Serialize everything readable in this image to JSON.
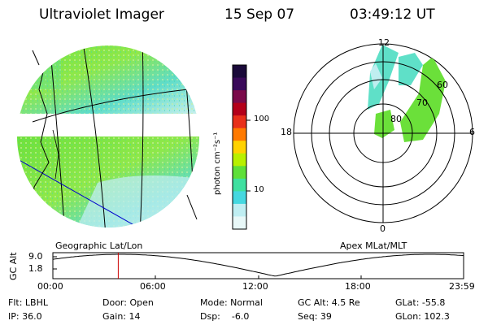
{
  "header": {
    "instrument": "Ultraviolet Imager",
    "date": "15 Sep 07",
    "time": "03:49:12 UT"
  },
  "left_panel": {
    "caption": "Geographic Lat/Lon"
  },
  "right_panel": {
    "caption": "Apex MLat/MLT",
    "mlt_labels": {
      "top": "12",
      "left": "18",
      "right": "6",
      "bottom": "0"
    },
    "mlat_labels": [
      "60",
      "70",
      "80"
    ]
  },
  "colorbar": {
    "unit_label": "photon cm⁻²s⁻¹",
    "ticks": [
      "100",
      "10"
    ],
    "colors": [
      "#1a0a3a",
      "#3a0a5a",
      "#7a0a4a",
      "#b4001a",
      "#e8301a",
      "#ff7a00",
      "#ffd200",
      "#b8f000",
      "#5ee03a",
      "#3fe0a0",
      "#45d8e0",
      "#bfeef2",
      "#e8f8f8"
    ]
  },
  "altitude_plot": {
    "ylabel": "GC Alt",
    "yticks": [
      "9.0",
      "1.8"
    ],
    "xticks": [
      "00:00",
      "06:00",
      "12:00",
      "18:00",
      "23:59"
    ],
    "marker_time": "03:49:12"
  },
  "info": {
    "filter": "Flt: LBHL",
    "ip": "IP: 36.0",
    "door": "Door: Open",
    "gain": "Gain: 14",
    "mode": "Mode: Normal",
    "dsp": "Dsp:    -6.0",
    "gc_alt": "GC Alt: 4.5 Re",
    "seq": "Seq: 39",
    "glat": "GLat: -55.8",
    "glon": "GLon: 102.3"
  }
}
